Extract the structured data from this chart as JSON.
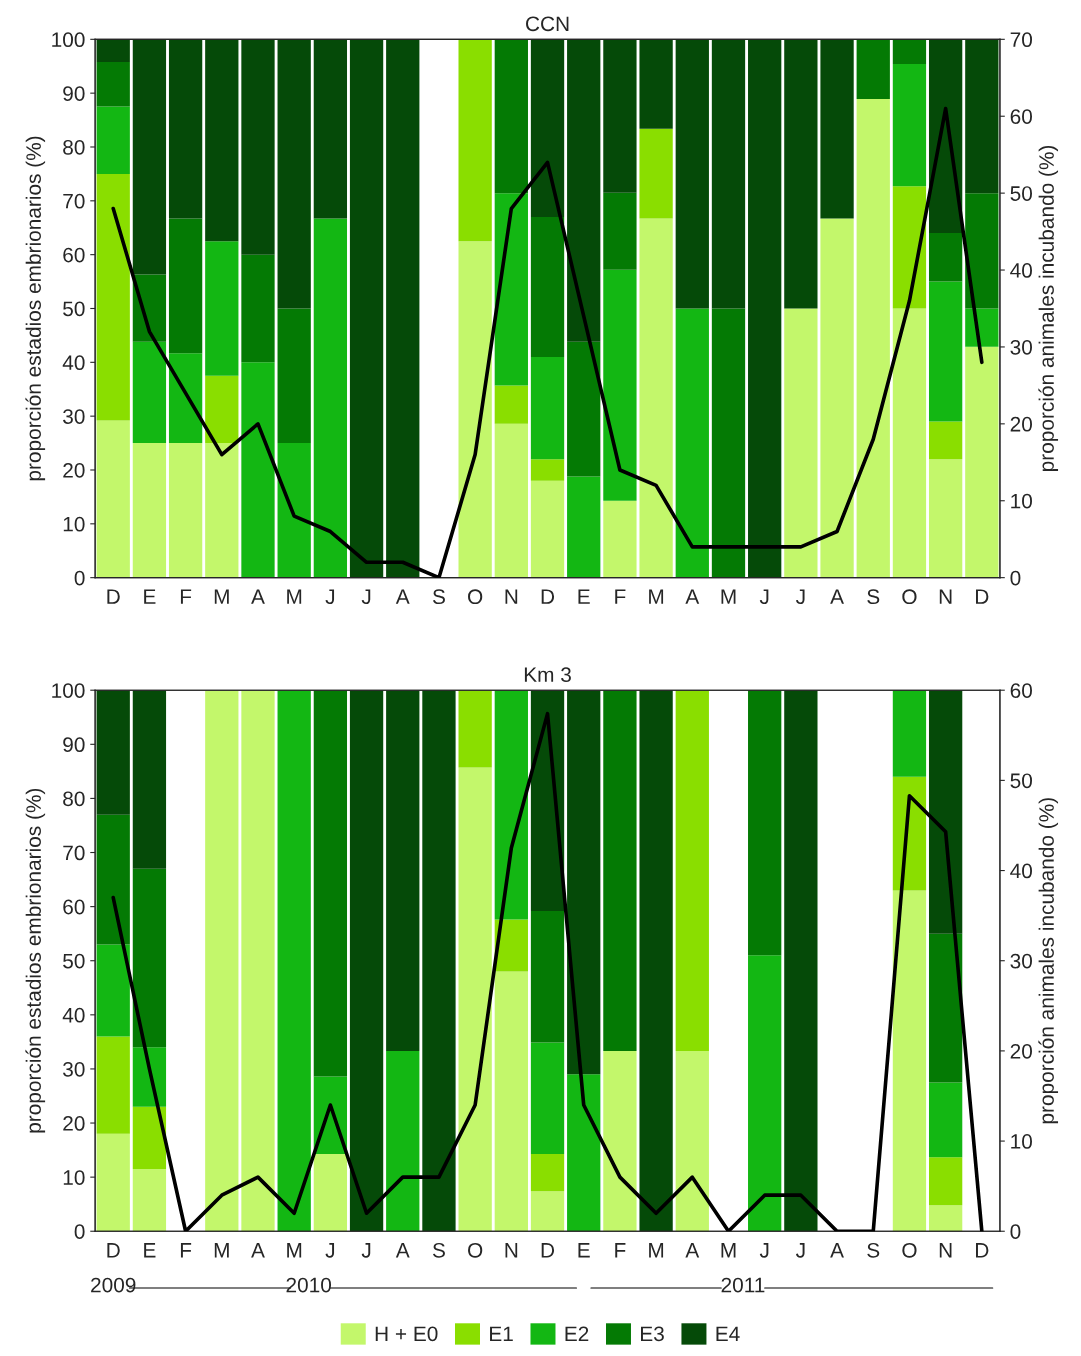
{
  "chart_data": [
    {
      "type": "bar",
      "title": "CCN",
      "ylabel": "proporción estadios embrionarios (%)",
      "y2label": "proporción animales incubando (%)",
      "stacked": true,
      "grid": false,
      "legend": false,
      "categories": [
        "D",
        "E",
        "F",
        "M",
        "A",
        "M",
        "J",
        "J",
        "A",
        "S",
        "O",
        "N",
        "D",
        "E",
        "F",
        "M",
        "A",
        "M",
        "J",
        "J",
        "A",
        "S",
        "O",
        "N",
        "D"
      ],
      "ylim": [
        0,
        100
      ],
      "yticks": [
        0,
        10,
        20,
        30,
        40,
        50,
        60,
        70,
        80,
        90,
        100
      ],
      "y2lim": [
        0,
        70
      ],
      "y2ticks": [
        0,
        10,
        20,
        30,
        40,
        50,
        60,
        70
      ],
      "series": [
        {
          "color": "#c3f76b",
          "values": [
            29.2,
            25,
            25,
            25,
            0,
            0,
            0,
            0,
            0,
            0,
            62.5,
            28.6,
            18,
            0,
            14.3,
            66.7,
            0,
            0,
            0,
            50,
            66.7,
            88.9,
            50,
            22,
            42.9
          ]
        },
        {
          "color": "#8ade00",
          "values": [
            45.8,
            0,
            0,
            12.5,
            0,
            0,
            0,
            0,
            0,
            0,
            37.5,
            7.1,
            4,
            0,
            0,
            16.7,
            0,
            0,
            0,
            0,
            0,
            0,
            22.7,
            7,
            0
          ]
        },
        {
          "color": "#13b713",
          "values": [
            12.5,
            18.8,
            16.7,
            25,
            40,
            25,
            66.7,
            0,
            0,
            0,
            0,
            35.7,
            19,
            18.8,
            42.9,
            0,
            50,
            0,
            0,
            0,
            0,
            0,
            22.7,
            26,
            7.1
          ]
        },
        {
          "color": "#047a04",
          "values": [
            8.3,
            12.5,
            25,
            0,
            20,
            25,
            0,
            0,
            0,
            0,
            0,
            28.6,
            26,
            25,
            14.3,
            0,
            0,
            50,
            0,
            0,
            0,
            11.1,
            4.6,
            9,
            21.4
          ]
        },
        {
          "color": "#054a08",
          "values": [
            4.2,
            43.8,
            33.3,
            37.5,
            40,
            50,
            33.3,
            100,
            100,
            0,
            0,
            0,
            33,
            56.2,
            28.5,
            16.6,
            50,
            50,
            100,
            50,
            33.3,
            0,
            0,
            36,
            28.6
          ]
        },
        {
          "type": "line",
          "axis": "y2",
          "color": "#000000",
          "values": [
            48,
            32,
            24,
            16,
            20,
            8,
            6,
            2,
            2,
            0,
            16,
            48,
            54,
            34,
            14,
            12,
            4,
            4,
            4,
            4,
            6,
            18,
            36,
            61,
            28
          ]
        }
      ]
    },
    {
      "type": "bar",
      "title": "Km 3",
      "ylabel": "proporción estadios embrionarios (%)",
      "y2label": "proporción animales incubando (%)",
      "stacked": true,
      "grid": false,
      "legend": "bottom",
      "categories": [
        "D",
        "E",
        "F",
        "M",
        "A",
        "M",
        "J",
        "J",
        "A",
        "S",
        "O",
        "N",
        "D",
        "E",
        "F",
        "M",
        "A",
        "M",
        "J",
        "J",
        "A",
        "S",
        "O",
        "N",
        "D"
      ],
      "ylim": [
        0,
        100
      ],
      "yticks": [
        0,
        10,
        20,
        30,
        40,
        50,
        60,
        70,
        80,
        90,
        100
      ],
      "y2lim": [
        0,
        60
      ],
      "y2ticks": [
        0,
        10,
        20,
        30,
        40,
        50,
        60
      ],
      "annotations": [
        "2009",
        "2010",
        "2011"
      ],
      "series": [
        {
          "name": "H + E0",
          "color": "#c3f76b",
          "values": [
            18,
            11.5,
            0,
            100,
            100,
            0,
            14.3,
            0,
            0,
            0,
            85.7,
            48,
            7.4,
            0,
            33.3,
            0,
            33.3,
            0,
            0,
            0,
            0,
            0,
            63,
            4.8,
            0
          ]
        },
        {
          "name": "E1",
          "color": "#8ade00",
          "values": [
            18,
            11.5,
            0,
            0,
            0,
            0,
            0,
            0,
            0,
            0,
            14.3,
            9.6,
            6.9,
            0,
            0,
            0,
            66.7,
            0,
            0,
            0,
            0,
            0,
            21,
            8.9,
            0
          ]
        },
        {
          "name": "E2",
          "color": "#13b713",
          "values": [
            17,
            11,
            0,
            0,
            0,
            100,
            14.3,
            0,
            33.3,
            0,
            0,
            42.4,
            20.6,
            29,
            0,
            0,
            0,
            0,
            51,
            0,
            0,
            0,
            16,
            13.8,
            0
          ]
        },
        {
          "name": "E3",
          "color": "#047a04",
          "values": [
            24,
            33,
            0,
            0,
            0,
            0,
            71.4,
            0,
            0,
            0,
            0,
            0,
            24.3,
            0,
            66.7,
            0,
            0,
            0,
            49,
            0,
            0,
            0,
            0,
            27.5,
            0
          ]
        },
        {
          "name": "E4",
          "color": "#054a08",
          "values": [
            23,
            33,
            0,
            0,
            0,
            0,
            0,
            100,
            66.7,
            100,
            0,
            0,
            40.8,
            71,
            0,
            100,
            0,
            0,
            0,
            100,
            0,
            0,
            0,
            45,
            0
          ]
        },
        {
          "type": "line",
          "axis": "y2",
          "color": "#000000",
          "values": [
            37,
            18,
            0,
            4,
            6,
            2,
            14,
            2,
            6,
            6,
            14,
            42.5,
            57.4,
            14,
            6,
            2,
            6,
            0,
            4,
            4,
            0,
            0,
            48.3,
            44.3,
            0
          ]
        }
      ]
    }
  ]
}
